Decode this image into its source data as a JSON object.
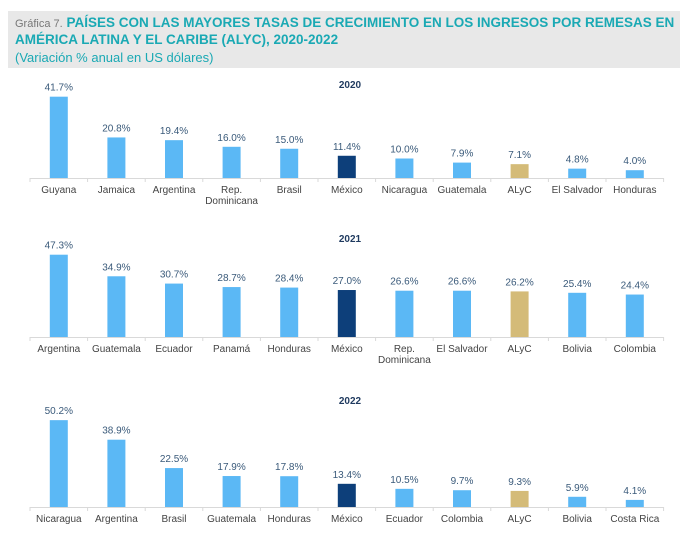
{
  "header": {
    "prefix": "Gráfica 7.",
    "title_line1": "PAÍSES CON LAS MAYORES TASAS DE CRECIMIENTO EN LOS INGRESOS POR REMESAS EN",
    "title_line2": "AMÉRICA LATINA Y EL CARIBE (ALYC), 2020-2022",
    "subtitle": "(Variación % anual en US dólares)"
  },
  "colors": {
    "default": "#5bb8f5",
    "mexico": "#0d3f7a",
    "alyc": "#d4bb78",
    "title": "#1aa9b4"
  },
  "chart_data": [
    {
      "type": "bar",
      "title": "2020",
      "categories": [
        "Guyana",
        "Jamaica",
        "Argentina",
        "Rep. Dominicana",
        "Brasil",
        "México",
        "Nicaragua",
        "Guatemala",
        "ALyC",
        "El Salvador",
        "Honduras"
      ],
      "values": [
        41.7,
        20.8,
        19.4,
        16.0,
        15.0,
        11.4,
        10.0,
        7.9,
        7.1,
        4.8,
        4.0
      ],
      "labels": [
        "41.7%",
        "20.8%",
        "19.4%",
        "16.0%",
        "15.0%",
        "11.4%",
        "10.0%",
        "7.9%",
        "7.1%",
        "4.8%",
        "4.0%"
      ],
      "highlight": {
        "México": "mexico",
        "ALyC": "alyc"
      },
      "xlabel": "",
      "ylabel": "",
      "grid": false
    },
    {
      "type": "bar",
      "title": "2021",
      "categories": [
        "Argentina",
        "Guatemala",
        "Ecuador",
        "Panamá",
        "Honduras",
        "México",
        "Rep. Dominicana",
        "El Salvador",
        "ALyC",
        "Bolivia",
        "Colombia"
      ],
      "values": [
        47.3,
        34.9,
        30.7,
        28.7,
        28.4,
        27.0,
        26.6,
        26.6,
        26.2,
        25.4,
        24.4
      ],
      "labels": [
        "47.3%",
        "34.9%",
        "30.7%",
        "28.7%",
        "28.4%",
        "27.0%",
        "26.6%",
        "26.6%",
        "26.2%",
        "25.4%",
        "24.4%"
      ],
      "highlight": {
        "México": "mexico",
        "ALyC": "alyc"
      },
      "xlabel": "",
      "ylabel": "",
      "grid": false
    },
    {
      "type": "bar",
      "title": "2022",
      "categories": [
        "Nicaragua",
        "Argentina",
        "Brasil",
        "Guatemala",
        "Honduras",
        "México",
        "Ecuador",
        "Colombia",
        "ALyC",
        "Bolivia",
        "Costa Rica"
      ],
      "values": [
        50.2,
        38.9,
        22.5,
        17.9,
        17.8,
        13.4,
        10.5,
        9.7,
        9.3,
        5.9,
        4.1
      ],
      "labels": [
        "50.2%",
        "38.9%",
        "22.5%",
        "17.9%",
        "17.8%",
        "13.4%",
        "10.5%",
        "9.7%",
        "9.3%",
        "5.9%",
        "4.1%"
      ],
      "highlight": {
        "México": "mexico",
        "ALyC": "alyc"
      },
      "xlabel": "",
      "ylabel": "",
      "grid": false
    }
  ]
}
